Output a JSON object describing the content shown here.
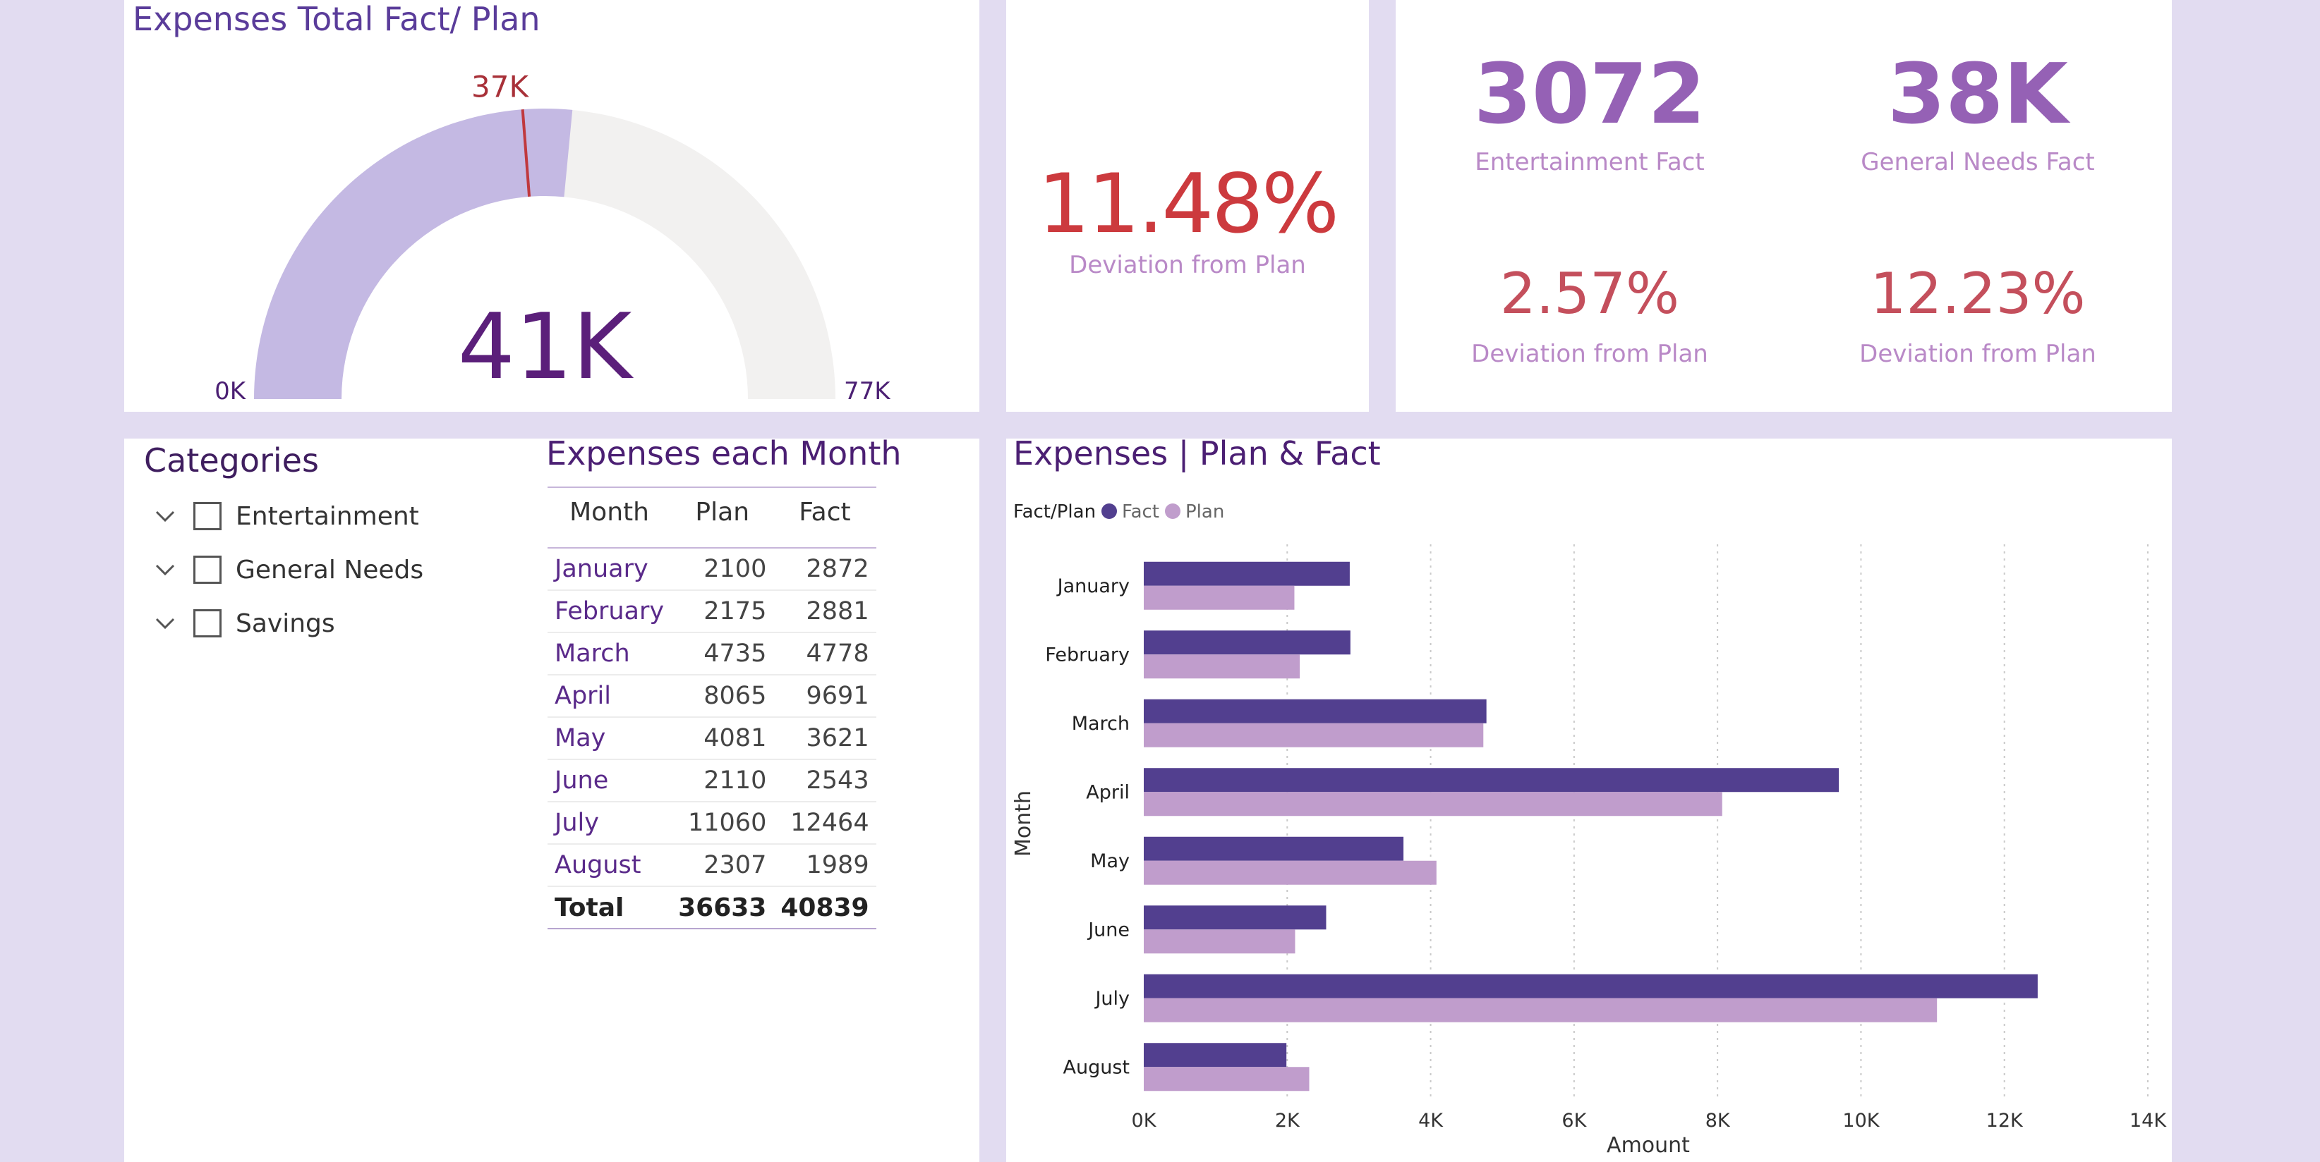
{
  "gauge": {
    "title": "Expenses Total Fact/ Plan",
    "value_label": "41K",
    "min_label": "0K",
    "max_label": "77K",
    "target_label": "37K",
    "value": 40839,
    "target": 36633,
    "max": 77000,
    "colors": {
      "fill": "#c4b9e3",
      "track": "#f2f1f0",
      "target": "#c0393e",
      "value_text": "#5b1f7a"
    }
  },
  "deviation": {
    "value": "11.48%",
    "label": "Deviation from Plan"
  },
  "kpis": [
    {
      "value": "3072",
      "label": "Entertainment Fact"
    },
    {
      "value": "38K",
      "label": "General Needs Fact"
    },
    {
      "value": "2.57%",
      "label": "Deviation from Plan"
    },
    {
      "value": "12.23%",
      "label": "Deviation from Plan"
    }
  ],
  "categories": {
    "title": "Categories",
    "items": [
      "Entertainment",
      "General Needs",
      "Savings"
    ],
    "icons": {
      "expand": "chevron-down-icon",
      "select": "checkbox-icon"
    }
  },
  "month_table": {
    "title": "Expenses each Month",
    "headers": [
      "Month",
      "Plan",
      "Fact"
    ],
    "rows": [
      [
        "January",
        "2100",
        "2872"
      ],
      [
        "February",
        "2175",
        "2881"
      ],
      [
        "March",
        "4735",
        "4778"
      ],
      [
        "April",
        "8065",
        "9691"
      ],
      [
        "May",
        "4081",
        "3621"
      ],
      [
        "June",
        "2110",
        "2543"
      ],
      [
        "July",
        "11060",
        "12464"
      ],
      [
        "August",
        "2307",
        "1989"
      ]
    ],
    "total": [
      "Total",
      "36633",
      "40839"
    ]
  },
  "chart": {
    "title": "Expenses | Plan & Fact",
    "legend_title": "Fact/Plan"
  },
  "chart_data": {
    "type": "bar",
    "orientation": "horizontal",
    "title": "Expenses | Plan & Fact",
    "categories": [
      "January",
      "February",
      "March",
      "April",
      "May",
      "June",
      "July",
      "August"
    ],
    "series": [
      {
        "name": "Fact",
        "values": [
          2872,
          2881,
          4778,
          9691,
          3621,
          2543,
          12464,
          1989
        ],
        "color": "#523f8f"
      },
      {
        "name": "Plan",
        "values": [
          2100,
          2175,
          4735,
          8065,
          4081,
          2110,
          11060,
          2307
        ],
        "color": "#c09dcc"
      }
    ],
    "xlabel": "Amount",
    "ylabel": "Month",
    "xlim": [
      0,
      14000
    ],
    "xticks": [
      "0K",
      "2K",
      "4K",
      "6K",
      "8K",
      "10K",
      "12K",
      "14K"
    ],
    "grid": true,
    "legend": "top-left"
  }
}
